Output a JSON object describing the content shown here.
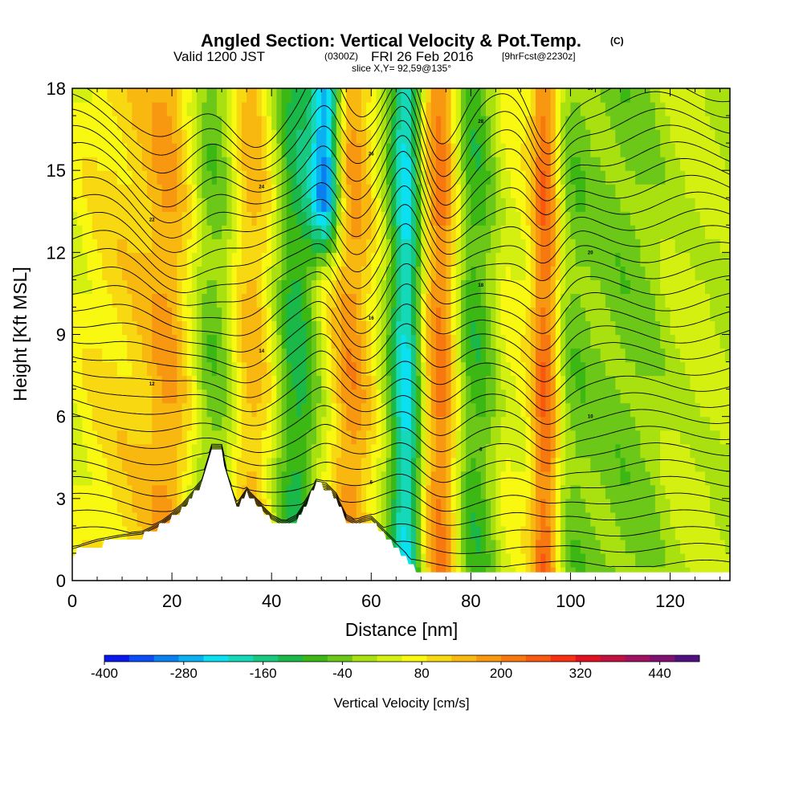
{
  "title": {
    "main": "Angled Section: Vertical Velocity & Pot.Temp.",
    "units": "(C)",
    "valid_prefix": "Valid 1200 JST",
    "valid_z": "(0300Z)",
    "valid_date": "FRI 26 Feb 2016",
    "forecast": "[9hrFcst@2230z]",
    "slice": "slice X,Y= 92,59@135°"
  },
  "chart_data": {
    "type": "heatmap",
    "xlabel": "Distance [nm]",
    "ylabel": "Height [Kft MSL]",
    "xlim": [
      0,
      132
    ],
    "ylim": [
      0,
      18
    ],
    "x_ticks": [
      0,
      20,
      40,
      60,
      80,
      100,
      120
    ],
    "y_ticks": [
      0,
      3,
      6,
      9,
      12,
      15,
      18
    ],
    "x_tick_labels": [
      "0",
      "20",
      "40",
      "60",
      "80",
      "100",
      "120"
    ],
    "y_tick_labels": [
      "0",
      "3",
      "6",
      "9",
      "12",
      "15",
      "18"
    ],
    "grid": false,
    "colorbar": {
      "label": "Vertical Velocity [cm/s]",
      "tick_labels": [
        "-400",
        "-280",
        "-160",
        "-40",
        "80",
        "200",
        "320",
        "440"
      ],
      "tick_values": [
        -400,
        -280,
        -160,
        -40,
        80,
        200,
        320,
        440
      ],
      "min": -400,
      "max": 500,
      "step": 40,
      "colors": [
        "#0a18f0",
        "#0a4cf5",
        "#0a80f0",
        "#0ab0f0",
        "#0ae0f0",
        "#14d8b8",
        "#18c880",
        "#1ab848",
        "#3cb814",
        "#6cc818",
        "#a8e010",
        "#d4f010",
        "#f8f810",
        "#f8d810",
        "#f8b810",
        "#f89810",
        "#f87810",
        "#f85810",
        "#f83010",
        "#e01020",
        "#c01040",
        "#a01060",
        "#801070",
        "#501080"
      ]
    },
    "terrain_kft": {
      "x": [
        0,
        5,
        10,
        14,
        18,
        22,
        26,
        28,
        30,
        31,
        33,
        35,
        36,
        37,
        38,
        40,
        42,
        43,
        45,
        47,
        49,
        51,
        53,
        55,
        57,
        58,
        60,
        62,
        63,
        65,
        67,
        68,
        70,
        72,
        75,
        80,
        90,
        100,
        110,
        120,
        132
      ],
      "z": [
        1.0,
        1.3,
        1.5,
        1.6,
        2.0,
        2.6,
        3.5,
        4.8,
        4.8,
        3.8,
        2.6,
        3.2,
        3.0,
        2.8,
        2.6,
        2.2,
        2.0,
        2.0,
        2.2,
        2.8,
        3.5,
        3.4,
        3.0,
        2.2,
        2.0,
        2.1,
        2.2,
        1.8,
        1.6,
        1.2,
        0.8,
        0.5,
        0.3,
        0.3,
        0.3,
        0.3,
        0.3,
        0.3,
        0.3,
        0.3,
        0.3
      ]
    },
    "vertical_velocity_features": [
      {
        "x": 0,
        "w": 8,
        "value": 40
      },
      {
        "x": 10,
        "w": 8,
        "value": 100
      },
      {
        "x": 20,
        "w": 6,
        "value": 160
      },
      {
        "x": 28,
        "w": 5,
        "value": -80
      },
      {
        "x": 36,
        "w": 5,
        "value": 160
      },
      {
        "x": 45,
        "w": 4,
        "value": -120
      },
      {
        "x": 51,
        "w": 3,
        "value": -360,
        "zmin": 14
      },
      {
        "x": 56,
        "w": 5,
        "value": 200
      },
      {
        "x": 67,
        "w": 3,
        "value": -240
      },
      {
        "x": 74,
        "w": 4,
        "value": 240
      },
      {
        "x": 81,
        "w": 5,
        "value": -120
      },
      {
        "x": 87,
        "w": 6,
        "value": 80
      },
      {
        "x": 95,
        "w": 3,
        "value": 240
      },
      {
        "x": 100,
        "w": 4,
        "value": -40
      },
      {
        "x": 112,
        "w": 9,
        "value": -40
      },
      {
        "x": 124,
        "w": 8,
        "value": 40
      }
    ],
    "contour_labels": [
      "2",
      "4",
      "6",
      "8",
      "10",
      "12",
      "14",
      "16",
      "18",
      "20",
      "22",
      "24",
      "26",
      "28",
      "30"
    ]
  }
}
